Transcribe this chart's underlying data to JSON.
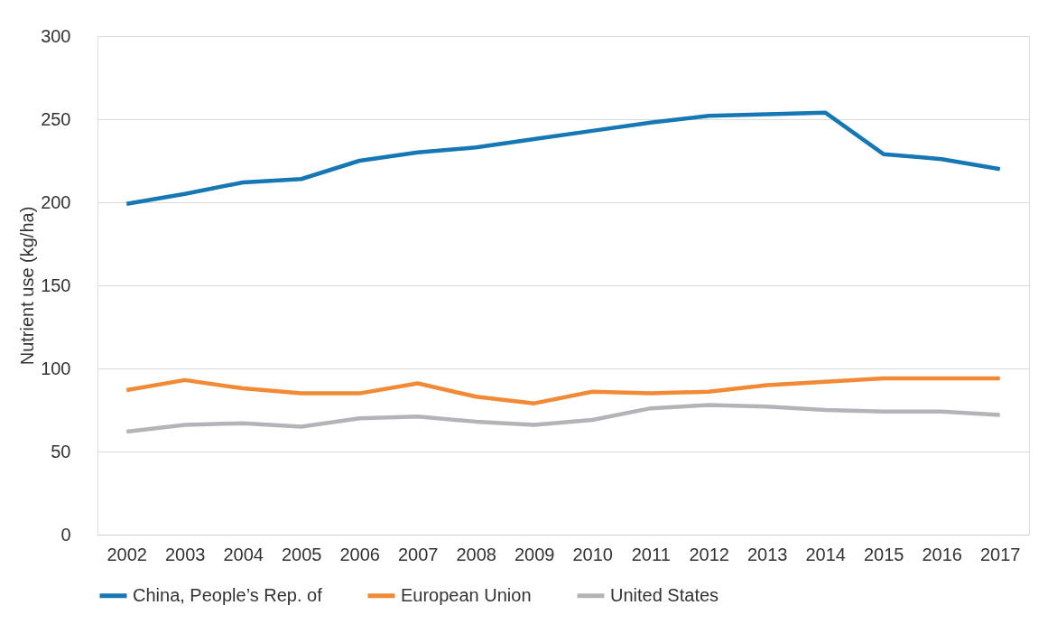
{
  "chart_data": {
    "type": "line",
    "ylabel": "Nutrient use (kg/ha)",
    "categories": [
      "2002",
      "2003",
      "2004",
      "2005",
      "2006",
      "2007",
      "2008",
      "2009",
      "2010",
      "2011",
      "2012",
      "2013",
      "2014",
      "2015",
      "2016",
      "2017"
    ],
    "series": [
      {
        "name": "China, People’s Rep. of",
        "color": "#1577b3",
        "values": [
          199,
          205,
          212,
          214,
          225,
          230,
          233,
          238,
          243,
          248,
          252,
          253,
          254,
          229,
          226,
          220
        ]
      },
      {
        "name": "European Union",
        "color": "#f28a35",
        "values": [
          87,
          93,
          88,
          85,
          85,
          91,
          83,
          79,
          86,
          85,
          86,
          90,
          92,
          94,
          94,
          94
        ]
      },
      {
        "name": "United States",
        "color": "#b4b4b8",
        "values": [
          62,
          66,
          67,
          65,
          70,
          71,
          68,
          66,
          69,
          76,
          78,
          77,
          75,
          74,
          74,
          72
        ]
      }
    ],
    "ylim": [
      0,
      300
    ],
    "yticks": [
      0,
      50,
      100,
      150,
      200,
      250,
      300
    ],
    "grid": "y",
    "legend": "bottom",
    "marker": "none",
    "line_style": "solid"
  }
}
